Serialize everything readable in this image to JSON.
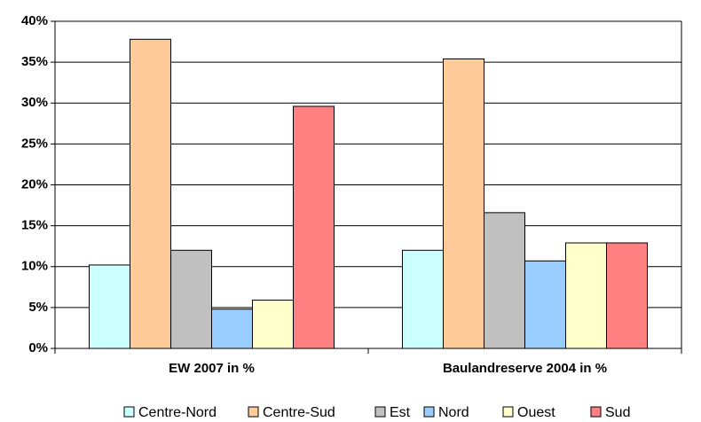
{
  "chart_data": {
    "type": "bar",
    "categories": [
      "EW 2007 in %",
      "Baulandreserve 2004 in %"
    ],
    "series": [
      {
        "name": "Centre-Nord",
        "color": "#ccffff",
        "values": [
          10.2,
          12.0
        ]
      },
      {
        "name": "Centre-Sud",
        "color": "#ffcc99",
        "values": [
          37.8,
          35.4
        ]
      },
      {
        "name": "Est",
        "color": "#c0c0c0",
        "values": [
          12.0,
          16.6
        ]
      },
      {
        "name": "Nord",
        "color": "#99ccff",
        "values": [
          4.8,
          10.7
        ]
      },
      {
        "name": "Ouest",
        "color": "#ffffcc",
        "values": [
          5.9,
          12.9
        ]
      },
      {
        "name": "Sud",
        "color": "#ff8080",
        "values": [
          29.6,
          12.9
        ]
      }
    ],
    "ylim": [
      0,
      40
    ],
    "yticks": [
      {
        "value": 0,
        "label": "0%"
      },
      {
        "value": 5,
        "label": "5%"
      },
      {
        "value": 10,
        "label": "10%"
      },
      {
        "value": 15,
        "label": "15%"
      },
      {
        "value": 20,
        "label": "20%"
      },
      {
        "value": 25,
        "label": "25%"
      },
      {
        "value": 30,
        "label": "30%"
      },
      {
        "value": 35,
        "label": "35%"
      },
      {
        "value": 40,
        "label": "40%"
      }
    ],
    "grid": true,
    "legend": "bottom"
  }
}
